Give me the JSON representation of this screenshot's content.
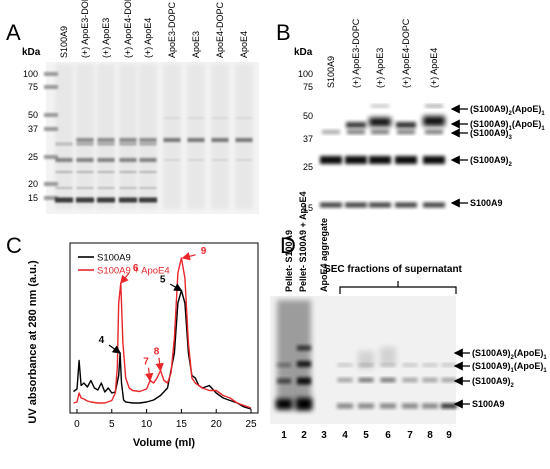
{
  "panels": {
    "A": {
      "letter": "A",
      "kda_label": "kDa",
      "markers": [
        "100",
        "75",
        "50",
        "37",
        "25",
        "20",
        "15"
      ],
      "lanes": [
        "S100A9",
        "(+) ApoE3-DOPC",
        "(+) ApoE3",
        "(+) ApoE4-DOPC",
        "(+) ApoE4",
        "ApoE3-DOPC",
        "ApoE3",
        "ApoE4-DOPC",
        "ApoE4"
      ]
    },
    "B": {
      "letter": "B",
      "kda_label": "kDa",
      "markers": [
        "100",
        "75",
        "50",
        "37",
        "25",
        "15"
      ],
      "lanes": [
        "S100A9",
        "(+) ApoE3-DOPC",
        "(+) ApoE3",
        "(+) ApoE4-DOPC",
        "(+) ApoE4"
      ],
      "band_labels": [
        "(S100A9)2(ApoE)1",
        "(S100A9)1(ApoE)1",
        "(S100A9)3",
        "(S100A9)2",
        "S100A9"
      ]
    },
    "C": {
      "letter": "C",
      "chart_data": {
        "type": "line",
        "xlabel": "Volume (ml)",
        "ylabel": "UV absorbance at 280 nm (a.u.)",
        "xlim": [
          -1,
          26
        ],
        "x_ticks": [
          0,
          5,
          10,
          15,
          20,
          25
        ],
        "legend_position": "top-left",
        "series": [
          {
            "name": "S100A9",
            "color": "#000000",
            "points": [
              [
                -0.5,
                4.3
              ],
              [
                0,
                4.8
              ],
              [
                0.3,
                10.5
              ],
              [
                0.6,
                5.5
              ],
              [
                1,
                6
              ],
              [
                1.5,
                5.2
              ],
              [
                2,
                6.5
              ],
              [
                2.5,
                5
              ],
              [
                3,
                4.6
              ],
              [
                3.5,
                6
              ],
              [
                4,
                4.2
              ],
              [
                4.5,
                5
              ],
              [
                5,
                4
              ],
              [
                5.5,
                4.2
              ],
              [
                6,
                7.5
              ],
              [
                6.2,
                12
              ],
              [
                6.4,
                6
              ],
              [
                6.7,
                2.6
              ],
              [
                7,
                2.2
              ],
              [
                8,
                2
              ],
              [
                9,
                2
              ],
              [
                10,
                2.2
              ],
              [
                11,
                2.6
              ],
              [
                12,
                3.5
              ],
              [
                13,
                5
              ],
              [
                14,
                12
              ],
              [
                14.5,
                22
              ],
              [
                15,
                24.5
              ],
              [
                15.5,
                22
              ],
              [
                16,
                12
              ],
              [
                16.5,
                7.5
              ],
              [
                17,
                7
              ],
              [
                17.5,
                5.5
              ],
              [
                18,
                5
              ],
              [
                19,
                5.5
              ],
              [
                20,
                4
              ],
              [
                21,
                3
              ],
              [
                22,
                2.5
              ],
              [
                23,
                2
              ],
              [
                24,
                1.2
              ],
              [
                25,
                0.8
              ]
            ]
          },
          {
            "name": "S100A9 + ApoE4",
            "color": "#e8262a",
            "points": [
              [
                -0.5,
                2
              ],
              [
                0,
                2.2
              ],
              [
                0.3,
                4
              ],
              [
                0.6,
                3
              ],
              [
                1,
                2.8
              ],
              [
                1.5,
                2.4
              ],
              [
                2,
                2.2
              ],
              [
                3,
                2
              ],
              [
                4,
                2
              ],
              [
                5,
                2.5
              ],
              [
                5.5,
                4
              ],
              [
                5.8,
                9
              ],
              [
                6,
                22
              ],
              [
                6.3,
                26
              ],
              [
                6.6,
                14
              ],
              [
                7,
                7
              ],
              [
                7.5,
                5
              ],
              [
                8,
                4.5
              ],
              [
                9,
                4.3
              ],
              [
                10,
                4.8
              ],
              [
                10.5,
                6.5
              ],
              [
                11,
                6
              ],
              [
                11.5,
                7
              ],
              [
                12,
                8.5
              ],
              [
                12.5,
                6.5
              ],
              [
                13,
                6
              ],
              [
                13.5,
                8
              ],
              [
                14,
                15
              ],
              [
                14.5,
                28
              ],
              [
                15,
                31
              ],
              [
                15.5,
                27
              ],
              [
                16,
                14
              ],
              [
                16.5,
                7
              ],
              [
                17,
                6
              ],
              [
                18,
                5
              ],
              [
                19,
                4.5
              ],
              [
                20,
                4.5
              ],
              [
                21,
                3.5
              ],
              [
                22,
                3
              ],
              [
                23,
                2
              ],
              [
                24,
                1.5
              ],
              [
                25,
                1
              ]
            ]
          }
        ],
        "annotations": [
          {
            "label": "4",
            "x": 6.2,
            "y": 12,
            "color": "#000000"
          },
          {
            "label": "5",
            "x": 15,
            "y": 24.5,
            "color": "#000000"
          },
          {
            "label": "6",
            "x": 6.3,
            "y": 26,
            "color": "#e8262a"
          },
          {
            "label": "7",
            "x": 10.5,
            "y": 6.5,
            "color": "#e8262a"
          },
          {
            "label": "8",
            "x": 12,
            "y": 8.5,
            "color": "#e8262a"
          },
          {
            "label": "9",
            "x": 15.2,
            "y": 31,
            "color": "#e8262a"
          }
        ]
      }
    },
    "D": {
      "letter": "D",
      "top_labels": [
        "Pellet- S100A9",
        "Pellet- S100A9 + ApoE4",
        "ApoE4 aggregate"
      ],
      "sec_label": "SEC fractions of supernatant",
      "lane_numbers": [
        "1",
        "2",
        "3",
        "4",
        "5",
        "6",
        "7",
        "8",
        "9"
      ],
      "band_labels": [
        "(S100A9)2(ApoE)1",
        "(S100A9)1(ApoE)1",
        "(S100A9)2",
        "S100A9"
      ]
    }
  }
}
